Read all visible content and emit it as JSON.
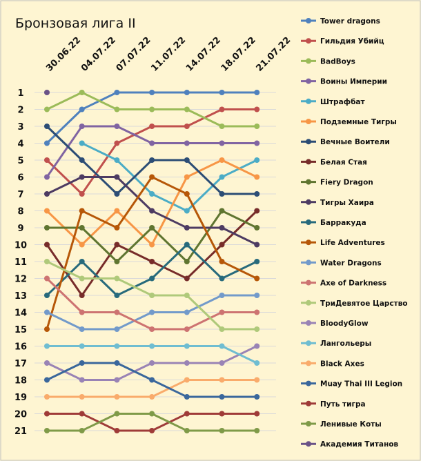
{
  "chart_data": {
    "type": "line",
    "title": "Бронзовая лига II",
    "x": [
      "30.06.22",
      "04.07.22",
      "07.07.22",
      "11.07.22",
      "14.07.22",
      "18.07.22",
      "21.07.22"
    ],
    "y_ticks": [
      "1",
      "2",
      "3",
      "4",
      "5",
      "6",
      "7",
      "8",
      "9",
      "10",
      "11",
      "12",
      "13",
      "14",
      "15",
      "16",
      "17",
      "18",
      "19",
      "20",
      "21"
    ],
    "ylim": [
      1,
      21
    ],
    "y_inverted": true,
    "grid": true,
    "legend": "right",
    "series": [
      {
        "name": "Tower dragons",
        "color": "#4f81bd",
        "values": [
          4,
          2,
          1,
          1,
          1,
          1,
          1
        ]
      },
      {
        "name": "Гильдия Убийц",
        "color": "#c0504d",
        "values": [
          5,
          7,
          4,
          3,
          3,
          2,
          2
        ]
      },
      {
        "name": "BadBoys",
        "color": "#9bbb59",
        "values": [
          2,
          1,
          2,
          2,
          2,
          3,
          3
        ]
      },
      {
        "name": "Воины Империи",
        "color": "#8064a2",
        "values": [
          6,
          3,
          3,
          4,
          4,
          4,
          4
        ]
      },
      {
        "name": "Штрафбат",
        "color": "#4bacc6",
        "values": [
          null,
          4,
          5,
          7,
          8,
          6,
          5
        ]
      },
      {
        "name": "Подземные Тигры",
        "color": "#f79646",
        "values": [
          8,
          10,
          8,
          10,
          6,
          5,
          6
        ]
      },
      {
        "name": "Вечные Воители",
        "color": "#2c4d75",
        "values": [
          3,
          5,
          7,
          5,
          5,
          7,
          7
        ]
      },
      {
        "name": "Белая Стая",
        "color": "#772c2a",
        "values": [
          10,
          13,
          10,
          11,
          12,
          10,
          8
        ]
      },
      {
        "name": "Fiery Dragon",
        "color": "#5f7530",
        "values": [
          9,
          9,
          11,
          9,
          11,
          8,
          9
        ]
      },
      {
        "name": "Тигры Хаира",
        "color": "#4d3b62",
        "values": [
          7,
          6,
          6,
          8,
          9,
          9,
          10
        ]
      },
      {
        "name": "Барракуда",
        "color": "#276a7c",
        "values": [
          13,
          11,
          13,
          12,
          10,
          12,
          11
        ]
      },
      {
        "name": "Life Adventures",
        "color": "#b65708",
        "values": [
          15,
          8,
          9,
          6,
          7,
          11,
          12
        ]
      },
      {
        "name": "Water Dragons",
        "color": "#729aca",
        "values": [
          14,
          15,
          15,
          14,
          14,
          13,
          13
        ]
      },
      {
        "name": "Axe of Darkness",
        "color": "#cd7371",
        "values": [
          12,
          14,
          14,
          15,
          15,
          14,
          14
        ]
      },
      {
        "name": "ТриДевятое Царство",
        "color": "#afc97a",
        "values": [
          11,
          12,
          12,
          13,
          13,
          15,
          15
        ]
      },
      {
        "name": "BloodyGlow",
        "color": "#9983b5",
        "values": [
          17,
          18,
          18,
          17,
          17,
          17,
          16
        ]
      },
      {
        "name": "Лангольеры",
        "color": "#6fbdd1",
        "values": [
          16,
          16,
          16,
          16,
          16,
          16,
          17
        ]
      },
      {
        "name": "Black Axes",
        "color": "#f9ab6b",
        "values": [
          19,
          19,
          19,
          19,
          18,
          18,
          18
        ]
      },
      {
        "name": "Muay Thai III Legion",
        "color": "#3a679c",
        "values": [
          18,
          17,
          17,
          18,
          19,
          19,
          19
        ]
      },
      {
        "name": "Путь тигра",
        "color": "#9f3b38",
        "values": [
          20,
          20,
          21,
          21,
          20,
          20,
          20
        ]
      },
      {
        "name": "Ленивые Коты",
        "color": "#7f9a48",
        "values": [
          21,
          21,
          20,
          20,
          21,
          21,
          21
        ]
      },
      {
        "name": "Академия Титанов",
        "color": "#6a5287",
        "values": [
          1,
          null,
          null,
          null,
          null,
          null,
          null
        ]
      }
    ]
  }
}
